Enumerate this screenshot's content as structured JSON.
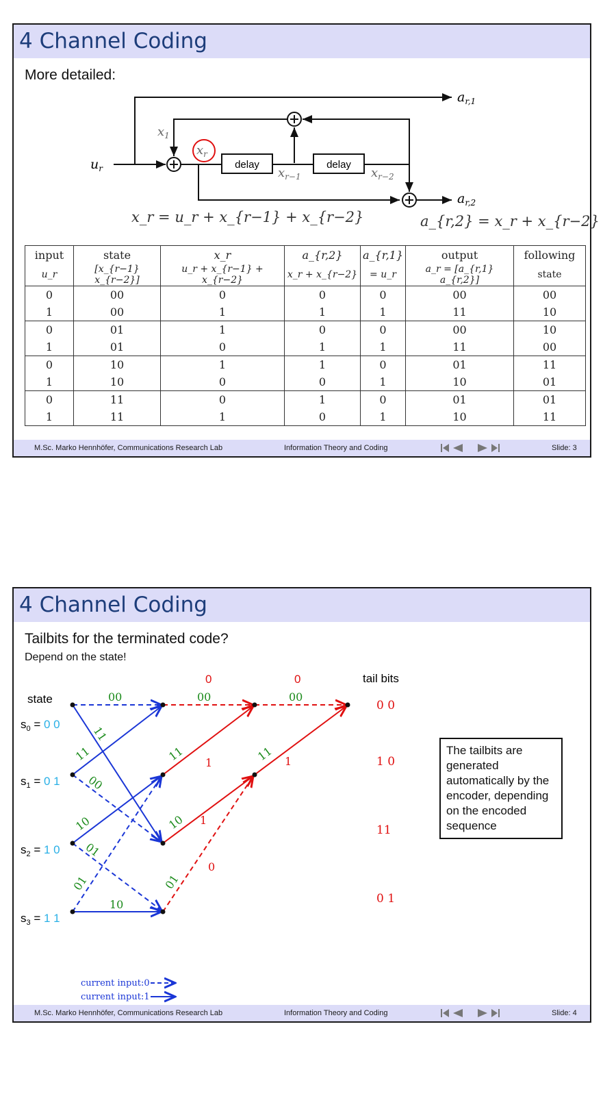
{
  "slide1": {
    "title": "4 Channel Coding",
    "subheading": "More detailed:",
    "diagram": {
      "in_label": "u",
      "in_sub": "r",
      "x1_label": "x",
      "x1_sub": "1",
      "xr_label": "x",
      "xr_sub": "r",
      "delay_label": "delay",
      "xr1_label": "x",
      "xr1_sub": "r−1",
      "xr2_label": "x",
      "xr2_sub": "r−2",
      "out1_label": "a",
      "out1_sub": "r,1",
      "out2_label": "a",
      "out2_sub": "r,2",
      "eq1": "x_r = u_r + x_{r−1} + x_{r−2}",
      "eq2": "a_{r,2} = x_r + x_{r−2}"
    },
    "table": {
      "headers_row1": [
        "input",
        "state",
        "x_r",
        "a_{r,2}",
        "a_{r,1}",
        "output",
        "following"
      ],
      "headers_row2": [
        "u_r",
        "[x_{r−1} x_{r−2}]",
        "u_r + x_{r−1} + x_{r−2}",
        "x_r + x_{r−2}",
        "= u_r",
        "a_r = [a_{r,1} a_{r,2}]",
        "state"
      ],
      "rows": [
        [
          "0",
          "00",
          "0",
          "0",
          "0",
          "00",
          "00"
        ],
        [
          "1",
          "00",
          "1",
          "1",
          "1",
          "11",
          "10"
        ],
        [
          "0",
          "01",
          "1",
          "0",
          "0",
          "00",
          "10"
        ],
        [
          "1",
          "01",
          "0",
          "1",
          "1",
          "11",
          "00"
        ],
        [
          "0",
          "10",
          "1",
          "1",
          "0",
          "01",
          "11"
        ],
        [
          "1",
          "10",
          "0",
          "0",
          "1",
          "10",
          "01"
        ],
        [
          "0",
          "11",
          "0",
          "1",
          "0",
          "01",
          "01"
        ],
        [
          "1",
          "11",
          "1",
          "0",
          "1",
          "10",
          "11"
        ]
      ]
    },
    "footer": {
      "author": "M.Sc. Marko Hennhöfer, Communications Research Lab",
      "course": "Information Theory and Coding",
      "slide": "Slide: 3"
    }
  },
  "slide2": {
    "title": "4 Channel Coding",
    "subheading": "Tailbits for the terminated code?",
    "subtext": "Depend on the state!",
    "trellis": {
      "state_header": "state",
      "tail_header": "tail bits",
      "states": [
        {
          "label": "s",
          "sub": "0",
          "bits": "0 0"
        },
        {
          "label": "s",
          "sub": "1",
          "bits": "0 1"
        },
        {
          "label": "s",
          "sub": "2",
          "bits": "1 0"
        },
        {
          "label": "s",
          "sub": "3",
          "bits": "1 1"
        }
      ],
      "tail_bits": [
        "0 0",
        "1 0",
        "11",
        "0 1"
      ],
      "input_labels_top": [
        "0",
        "0"
      ],
      "branch_labels": {
        "s0_s0": "00",
        "s0_s2": "11",
        "s1_s0": "11",
        "s1_s2": "00",
        "s2_s1": "10",
        "s2_s3": "01",
        "s3_s1": "01",
        "s3_s3": "10",
        "t2_00": "00",
        "t2_11": "11",
        "t2_10": "10",
        "t2_01": "01",
        "t3_00": "00",
        "t3_11": "11",
        "in_1a": "1",
        "in_1b": "1",
        "in_1c": "1",
        "in_0": "0"
      },
      "legend": [
        "current input:0",
        "current input:1"
      ]
    },
    "textbox": "The tailbits are generated automatically by the encoder, depending on the encoded sequence",
    "footer": {
      "author": "M.Sc. Marko Hennhöfer, Communications Research Lab",
      "course": "Information Theory and Coding",
      "slide": "Slide: 4"
    }
  },
  "colors": {
    "title": "#1d3d7a",
    "titlebar": "#dcdcf8",
    "blue": "#1a36d6",
    "red": "#e01010",
    "green": "#1a8a1a",
    "cyan": "#2ab0e6"
  },
  "icons": [
    "nav-first-icon",
    "nav-prev-icon",
    "nav-next-icon",
    "nav-last-icon",
    "adder-icon"
  ]
}
